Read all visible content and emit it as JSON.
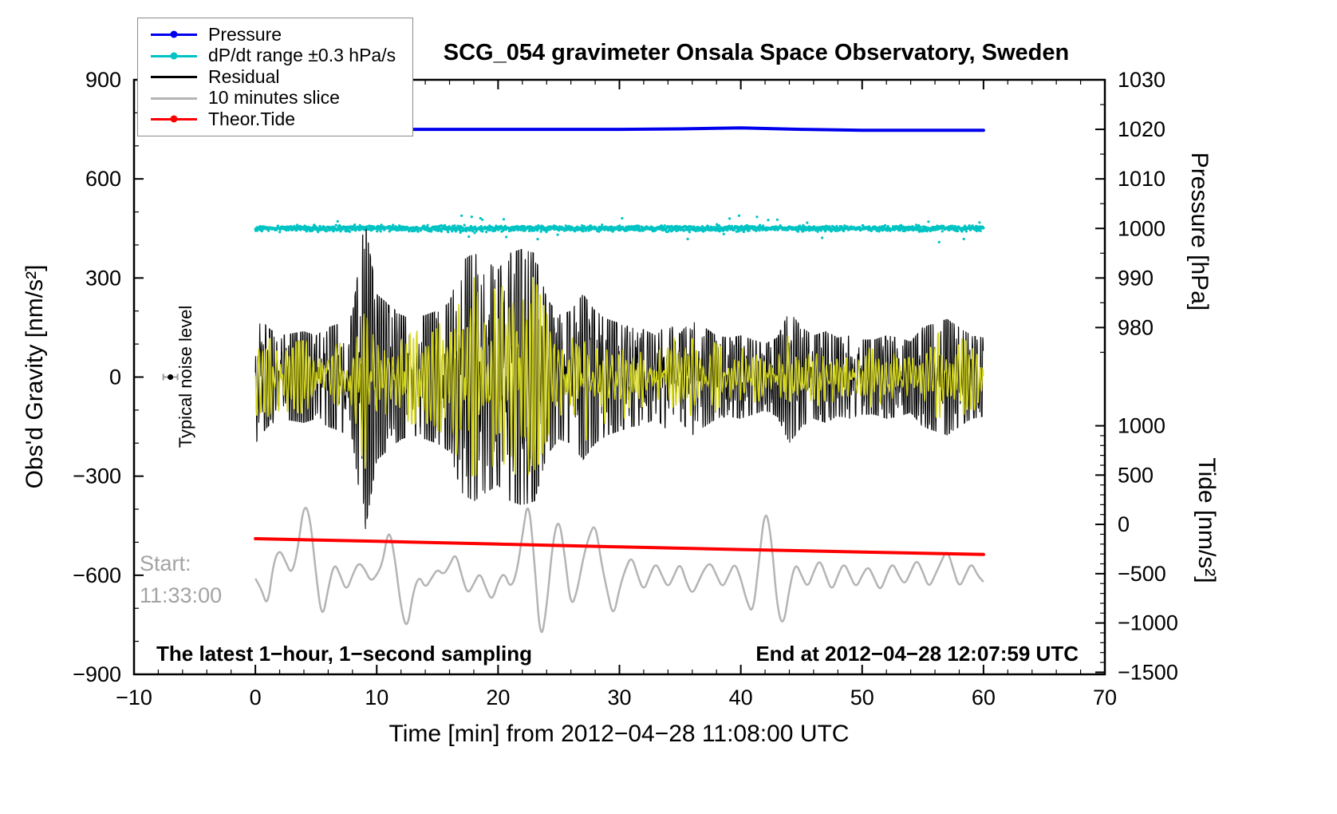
{
  "annotations": {
    "noise_label": "Typical noise level",
    "start_label": "Start:",
    "start_time": "11:33:00",
    "sampling_note": "The latest 1−hour, 1−second sampling",
    "end_note": "End at 2012−04−28 12:07:59 UTC"
  },
  "legend": {
    "items": [
      {
        "label": "Pressure",
        "color": "#0000ee",
        "marker": "dot"
      },
      {
        "label": "dP/dt range ±0.3 hPa/s",
        "color": "#00c3c3",
        "marker": "dot"
      },
      {
        "label": "Residual",
        "color": "#000000",
        "marker": "none"
      },
      {
        "label": "10 minutes slice",
        "color": "#b4b4b4",
        "marker": "none"
      },
      {
        "label": "Theor.Tide",
        "color": "#ff0000",
        "marker": "dot"
      }
    ]
  },
  "chart_data": {
    "type": "line",
    "title": "SCG_054 gravimeter Onsala Space Observatory, Sweden",
    "grid": false,
    "legend_position": "top-left",
    "axes": {
      "bottom": {
        "label": "Time [min] from 2012−04−28 11:08:00 UTC",
        "range": [
          -10,
          70
        ],
        "major_ticks": [
          -10,
          0,
          10,
          20,
          30,
          40,
          50,
          60,
          70
        ],
        "minor_step": 2
      },
      "left": {
        "label": "Obs'd Gravity [nm/s²]",
        "range": [
          -900,
          900
        ],
        "major_ticks": [
          -900,
          -600,
          -300,
          0,
          300,
          600,
          900
        ],
        "minor_step": 100
      },
      "right_pressure": {
        "label": "Pressure [hPa]",
        "major_ticks": [
          980,
          990,
          1000,
          1010,
          1020,
          1030
        ],
        "minor_step": 5,
        "hPa_at_gravity_zero": 970,
        "gravity_per_hPa": 15
      },
      "right_tide": {
        "label": "Tide [nm/s²]",
        "major_ticks": [
          1000,
          500,
          0,
          -500,
          -1000,
          -1500
        ],
        "minor_step": 100,
        "gravity_at_tide_zero": -446,
        "gravity_per_tide_unit": 0.2985
      }
    },
    "noise_marker": {
      "x_min": -7,
      "gravity": 0
    },
    "series": [
      {
        "name": "dP/dt range ±0.3 hPa/s",
        "type": "scatter",
        "axis": "pressure",
        "color": "#00c3c3",
        "x_range": [
          0,
          60
        ],
        "n": 2000,
        "center_hPa": 1000.0,
        "sd_hPa": 0.28,
        "outlier_rate": 0.02,
        "outlier_max_hPa": 2.5,
        "dot_radius": 1.6
      },
      {
        "name": "Pressure",
        "type": "line",
        "axis": "pressure",
        "color": "#0000ee",
        "width": 4,
        "x_start": 0,
        "x_step": 5,
        "values": [
          1020.0,
          1020.0,
          1020.0,
          1020.0,
          1020.0,
          1020.0,
          1020.0,
          1020.1,
          1020.3,
          1020.0,
          1019.8,
          1019.8,
          1019.8
        ]
      },
      {
        "name": "10 minutes slice",
        "type": "smooth_line",
        "axis": "gravity",
        "color": "#b4b4b4",
        "width": 2.5,
        "x_start": 0,
        "x_step": 0.5,
        "values": [
          -610,
          -640,
          -700,
          -560,
          -520,
          -560,
          -600,
          -520,
          -380,
          -420,
          -600,
          -740,
          -640,
          -560,
          -600,
          -650,
          -600,
          -560,
          -580,
          -620,
          -600,
          -560,
          -450,
          -550,
          -700,
          -770,
          -650,
          -600,
          -640,
          -610,
          -580,
          -600,
          -570,
          -530,
          -600,
          -660,
          -625,
          -590,
          -640,
          -680,
          -620,
          -590,
          -640,
          -600,
          -480,
          -360,
          -560,
          -810,
          -700,
          -500,
          -420,
          -540,
          -700,
          -650,
          -550,
          -480,
          -440,
          -560,
          -650,
          -730,
          -640,
          -580,
          -540,
          -600,
          -650,
          -600,
          -560,
          -600,
          -640,
          -600,
          -560,
          -620,
          -660,
          -620,
          -580,
          -560,
          -600,
          -640,
          -600,
          -560,
          -610,
          -680,
          -720,
          -560,
          -390,
          -480,
          -700,
          -760,
          -640,
          -560,
          -600,
          -640,
          -590,
          -550,
          -600,
          -650,
          -600,
          -560,
          -600,
          -640,
          -600,
          -570,
          -610,
          -650,
          -600,
          -560,
          -600,
          -630,
          -590,
          -550,
          -590,
          -640,
          -600,
          -560,
          -520,
          -580,
          -640,
          -600,
          -560,
          -600,
          -620
        ]
      },
      {
        "name": "Theor.Tide",
        "type": "line",
        "axis": "tide",
        "color": "#ff0000",
        "width": 4,
        "x_start": 0,
        "x_step": 10,
        "values": [
          -145,
          -172,
          -200,
          -228,
          -255,
          -280,
          -305
        ]
      },
      {
        "name": "Residual",
        "type": "band_noise",
        "axis": "gravity",
        "color": "#000000",
        "width": 1,
        "seconds": 3600,
        "mean": 0,
        "envelope_per_min": [
          160,
          120,
          100,
          105,
          110,
          100,
          120,
          130,
          150,
          380,
          200,
          175,
          150,
          140,
          150,
          160,
          180,
          280,
          300,
          280,
          260,
          300,
          310,
          300,
          190,
          150,
          160,
          200,
          160,
          140,
          130,
          120,
          115,
          100,
          130,
          105,
          140,
          120,
          100,
          95,
          100,
          90,
          80,
          95,
          160,
          120,
          100,
          110,
          95,
          100,
          90,
          90,
          100,
          95,
          85,
          120,
          130,
          140,
          120,
          100,
          95
        ]
      },
      {
        "name": "Residual smoothed overlay",
        "type": "band_noise_smooth",
        "axis": "gravity",
        "color": "#d4d619",
        "width": 1.4,
        "scale": 0.55
      }
    ]
  }
}
